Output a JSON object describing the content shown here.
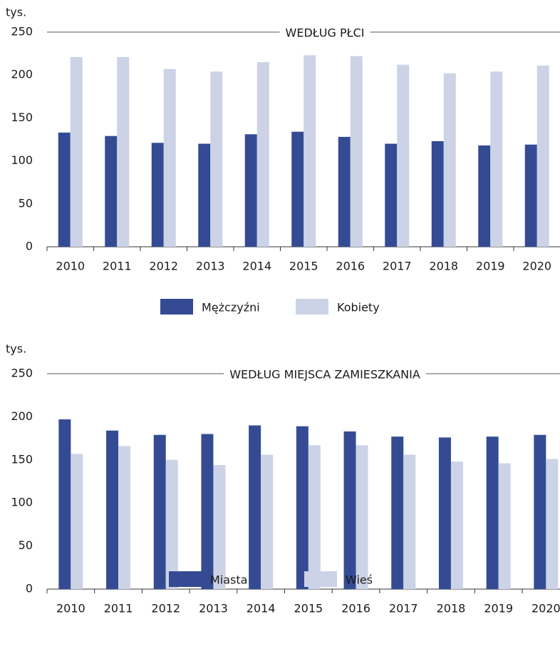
{
  "chart_data": [
    {
      "type": "bar",
      "title": "WEDŁUG PŁCI",
      "ylabel": "tys.",
      "categories": [
        "2010",
        "2011",
        "2012",
        "2013",
        "2014",
        "2015",
        "2016",
        "2017",
        "2018",
        "2019",
        "2020"
      ],
      "series": [
        {
          "name": "Mężczyźni",
          "color": "#344b94",
          "values": [
            133,
            129,
            121,
            120,
            131,
            134,
            128,
            120,
            123,
            118,
            119
          ]
        },
        {
          "name": "Kobiety",
          "color": "#ccd3e6",
          "values": [
            221,
            221,
            207,
            204,
            215,
            223,
            222,
            212,
            202,
            204,
            211
          ]
        }
      ],
      "ylim": [
        0,
        250
      ],
      "yticks": [
        0,
        50,
        100,
        150,
        200,
        250
      ],
      "legend": "bottom"
    },
    {
      "type": "bar",
      "title": "WEDŁUG MIEJSCA ZAMIESZKANIA",
      "ylabel": "tys.",
      "categories": [
        "2010",
        "2011",
        "2012",
        "2013",
        "2014",
        "2015",
        "2016",
        "2017",
        "2018",
        "2019",
        "2020"
      ],
      "series": [
        {
          "name": "Miasta",
          "color": "#344b94",
          "values": [
            197,
            184,
            179,
            180,
            190,
            189,
            183,
            177,
            176,
            177,
            179
          ]
        },
        {
          "name": "Wieś",
          "color": "#ccd3e6",
          "values": [
            157,
            166,
            150,
            144,
            156,
            167,
            167,
            156,
            148,
            146,
            151
          ]
        }
      ],
      "ylim": [
        0,
        250
      ],
      "yticks": [
        0,
        50,
        100,
        150,
        200,
        250
      ],
      "legend": "bottom"
    }
  ]
}
